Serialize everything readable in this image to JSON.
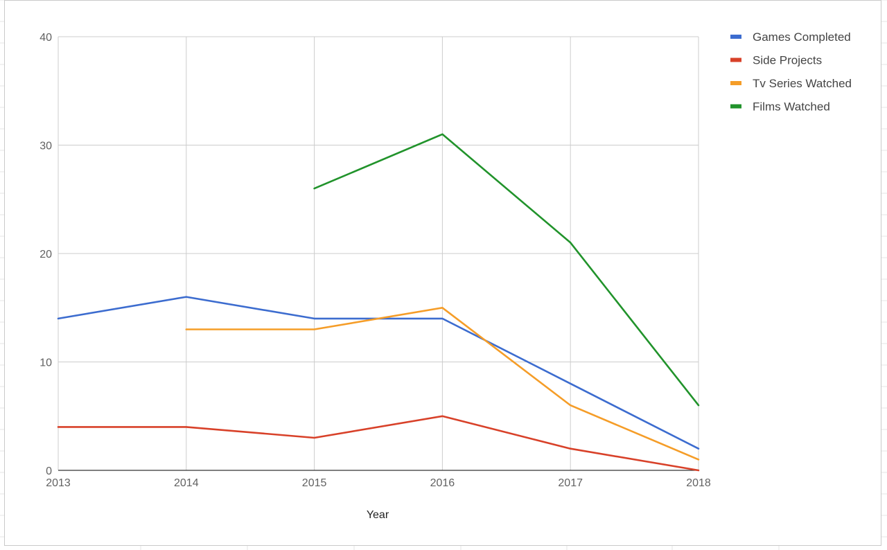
{
  "chart_data": {
    "type": "line",
    "title": "",
    "xlabel": "Year",
    "ylabel": "",
    "x": [
      2013,
      2014,
      2015,
      2016,
      2017,
      2018
    ],
    "x_tick_labels": [
      "2013",
      "2014",
      "2015",
      "2016",
      "2017",
      "2018"
    ],
    "ylim": [
      0,
      40
    ],
    "y_ticks": [
      0,
      10,
      20,
      30,
      40
    ],
    "y_tick_labels": [
      "0",
      "10",
      "20",
      "30",
      "40"
    ],
    "grid": true,
    "legend_position": "right",
    "series": [
      {
        "name": "Games Completed",
        "color": "#3c6ccf",
        "values": [
          14,
          16,
          14,
          14,
          8,
          2
        ]
      },
      {
        "name": "Side Projects",
        "color": "#d84129",
        "values": [
          4,
          4,
          3,
          5,
          2,
          0
        ]
      },
      {
        "name": "Tv Series Watched",
        "color": "#f59d28",
        "values": [
          null,
          13,
          13,
          15,
          6,
          1
        ]
      },
      {
        "name": "Films Watched",
        "color": "#21932b",
        "values": [
          null,
          null,
          26,
          31,
          21,
          6
        ]
      }
    ]
  }
}
